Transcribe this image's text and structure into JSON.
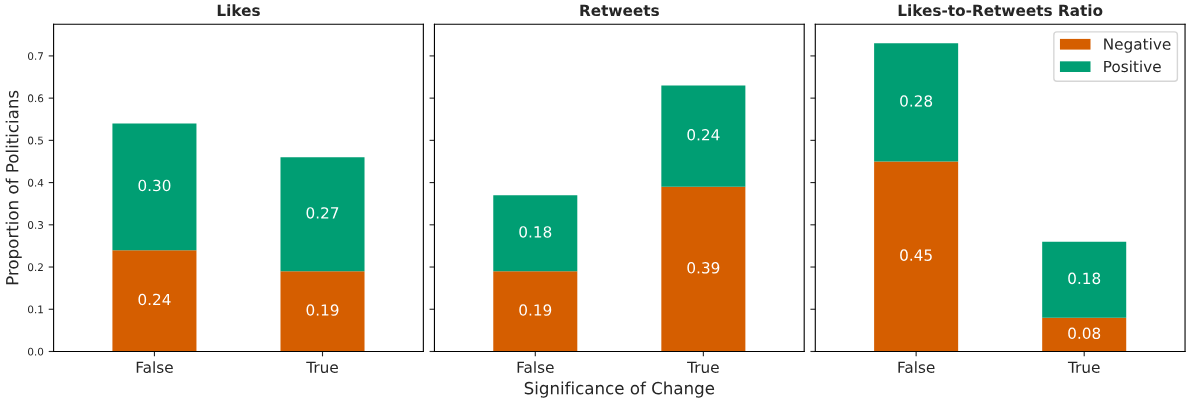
{
  "chart_data": [
    {
      "type": "bar",
      "title": "Likes",
      "ylabel": "Proportion of Politicians",
      "categories": [
        "False",
        "True"
      ],
      "stacked": true,
      "ylim": [
        0,
        0.775
      ],
      "yticks": [
        {
          "value": 0,
          "label": "0.0"
        },
        0.1,
        0.2,
        0.3,
        0.4,
        0.5,
        0.6,
        0.7
      ],
      "series": [
        {
          "color": "#d55e00",
          "values": [
            0.24,
            0.19
          ],
          "value_labels": [
            "0.24",
            "0.19"
          ]
        },
        {
          "color": "#009e73",
          "values": [
            0.3,
            0.27
          ],
          "value_labels": [
            "0.30",
            "0.27"
          ]
        }
      ]
    },
    {
      "type": "bar",
      "title": "Retweets",
      "xlabel": "Significance of Change",
      "categories": [
        "False",
        "True"
      ],
      "stacked": true,
      "tick_labels": "x",
      "ylim": [
        0,
        0.775
      ],
      "yticks": [
        0.0,
        0.1,
        0.2,
        0.3,
        0.4,
        0.5,
        0.6,
        0.7
      ],
      "series": [
        {
          "color": "#d55e00",
          "values": [
            0.19,
            0.39
          ],
          "value_labels": [
            "0.19",
            "0.39"
          ]
        },
        {
          "color": "#009e73",
          "values": [
            0.18,
            0.24
          ],
          "value_labels": [
            "0.18",
            "0.24"
          ]
        }
      ]
    },
    {
      "type": "bar",
      "title": "Likes-to-Retweets Ratio",
      "categories": [
        "False",
        "True"
      ],
      "stacked": true,
      "tick_labels": "x",
      "legend": "top right",
      "ylim": [
        0,
        0.775
      ],
      "yticks": [
        0.0,
        0.1,
        0.2,
        0.3,
        0.4,
        0.5,
        0.6,
        0.7
      ],
      "series": [
        {
          "name": "Negative",
          "color": "#d55e00",
          "values": [
            0.45,
            0.08
          ],
          "value_labels": [
            "0.45",
            "0.08"
          ]
        },
        {
          "name": "Positive",
          "color": "#009e73",
          "values": [
            0.28,
            0.18
          ],
          "value_labels": [
            "0.28",
            "0.18"
          ]
        }
      ]
    }
  ]
}
